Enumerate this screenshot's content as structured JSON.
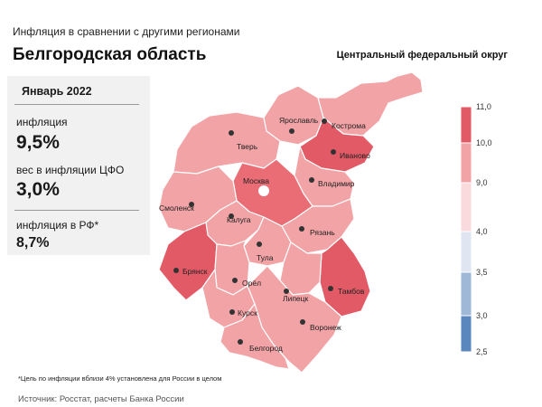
{
  "header": {
    "subtitle": "Инфляция  в сравнении  с другими регионами",
    "title": "Белгородская область",
    "district": "Центральный федеральный округ"
  },
  "panel": {
    "month": "Январь 2022",
    "inflation_label": "инфляция",
    "inflation_value": "9,5%",
    "weight_label": "вес в инфляции  ЦФО",
    "weight_value": "3,0%",
    "russia_label": "инфляция  в РФ*",
    "russia_value": "8,7%"
  },
  "map": {
    "regions": [
      {
        "id": "yaroslavl",
        "label": "Ярославль",
        "color": "#f2a3a6"
      },
      {
        "id": "kostroma",
        "label": "Кострома",
        "color": "#f2a3a6"
      },
      {
        "id": "ivanovo",
        "label": "Иваново",
        "color": "#e25a66"
      },
      {
        "id": "tver",
        "label": "Тверь",
        "color": "#f2a3a6"
      },
      {
        "id": "vladimir",
        "label": "Владимир",
        "color": "#f2a3a6"
      },
      {
        "id": "moskva",
        "label": "Москва",
        "color": "#ea6d76"
      },
      {
        "id": "smolensk",
        "label": "Смоленск",
        "color": "#f2a3a6"
      },
      {
        "id": "kaluga",
        "label": "Калуга",
        "color": "#f2a3a6"
      },
      {
        "id": "ryazan",
        "label": "Рязань",
        "color": "#f2a3a6"
      },
      {
        "id": "tula",
        "label": "Тула",
        "color": "#f2a3a6"
      },
      {
        "id": "bryansk",
        "label": "Брянск",
        "color": "#e25a66"
      },
      {
        "id": "orel",
        "label": "Орёл",
        "color": "#f2a3a6"
      },
      {
        "id": "tambov",
        "label": "Тамбов",
        "color": "#e25a66"
      },
      {
        "id": "lipetsk",
        "label": "Липецк",
        "color": "#f2a3a6"
      },
      {
        "id": "kursk",
        "label": "Курск",
        "color": "#f2a3a6"
      },
      {
        "id": "voronezh",
        "label": "Воронеж",
        "color": "#f2a3a6"
      },
      {
        "id": "belgorod",
        "label": "Белгород",
        "color": "#f2a3a6"
      }
    ],
    "highlighted_region": "Белгород"
  },
  "legend": {
    "ticks": [
      "11,0",
      "10,0",
      "9,0",
      "4,0",
      "3,5",
      "3,0",
      "2,5"
    ],
    "bands": [
      {
        "from": "10,0",
        "to": "11,0",
        "color": "#e25a66"
      },
      {
        "from": "9,0",
        "to": "10,0",
        "color": "#f2a3a6"
      },
      {
        "from": "4,0",
        "to": "9,0",
        "color": "#fadadd"
      },
      {
        "from": "3,5",
        "to": "4,0",
        "color": "#dfe6f2"
      },
      {
        "from": "3,0",
        "to": "3,5",
        "color": "#9fb8d8"
      },
      {
        "from": "2,5",
        "to": "3,0",
        "color": "#5b87bf"
      }
    ]
  },
  "footer": {
    "note": "*Цель по инфляции вблизи 4% установлена для России в целом",
    "source": "Источник: Росстат, расчеты Банка России"
  }
}
